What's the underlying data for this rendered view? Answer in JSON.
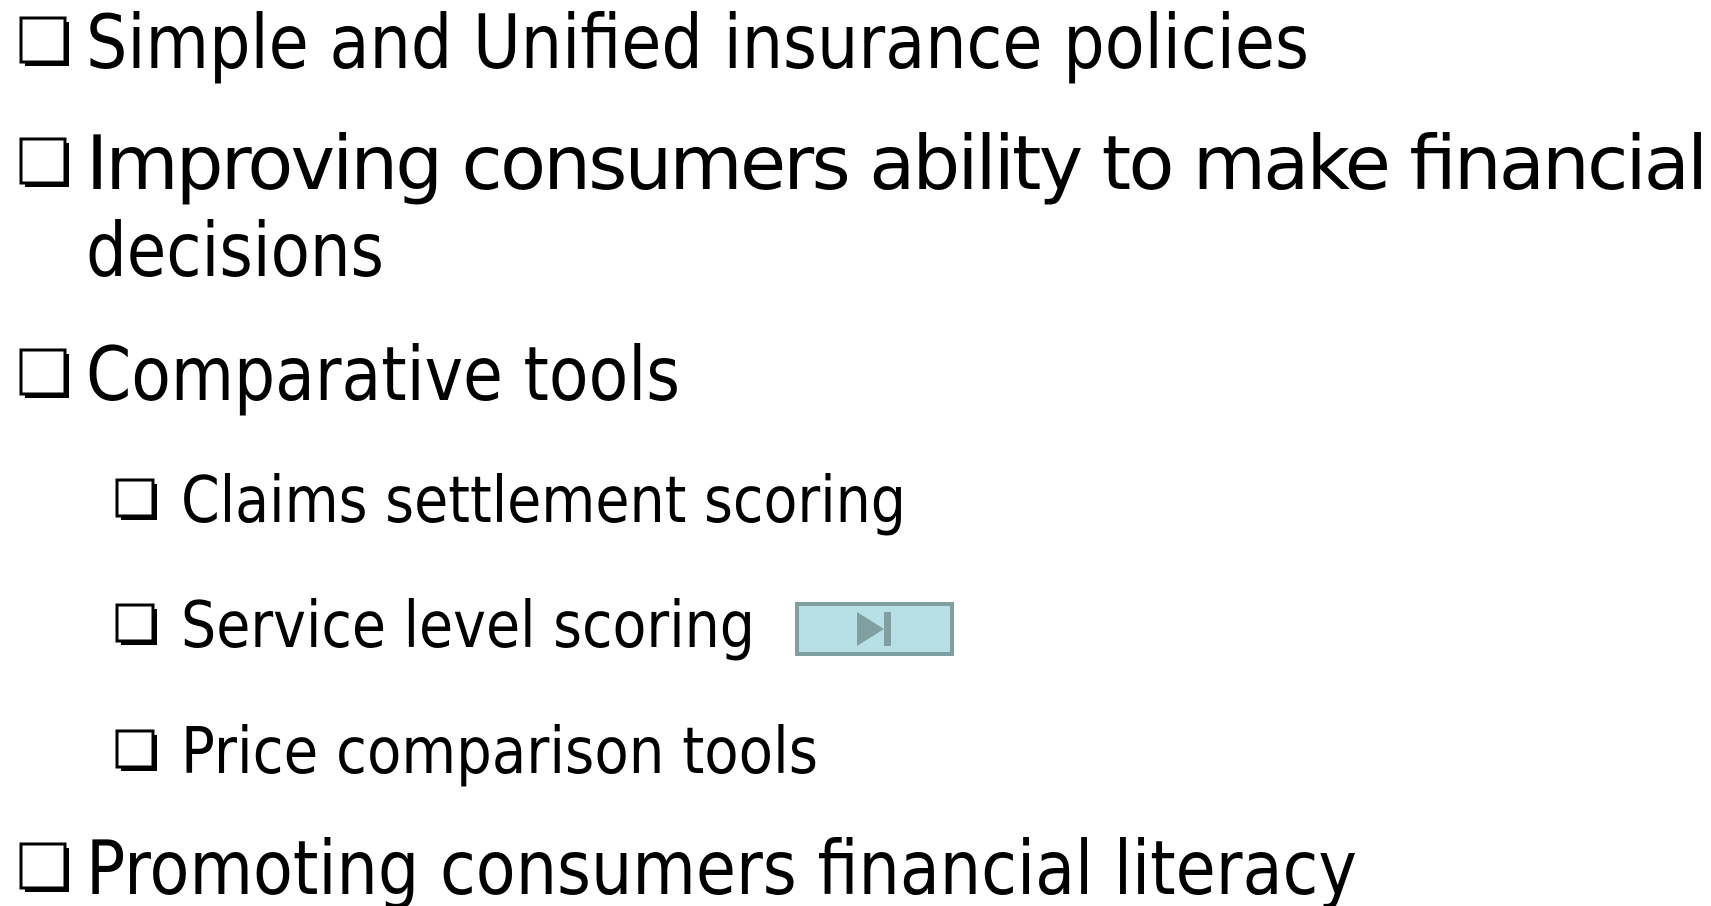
{
  "items": [
    {
      "level": 1,
      "lines": [
        "Simple and Unified insurance policies"
      ]
    },
    {
      "level": 1,
      "lines": [
        "Improving consumers ability to make financial",
        "decisions"
      ]
    },
    {
      "level": 1,
      "lines": [
        "Comparative tools"
      ]
    },
    {
      "level": 2,
      "lines": [
        "Claims settlement scoring"
      ]
    },
    {
      "level": 2,
      "lines": [
        "Service level scoring"
      ]
    },
    {
      "level": 2,
      "lines": [
        "Price comparison tools"
      ]
    },
    {
      "level": 1,
      "lines": [
        "Promoting consumers financial literacy"
      ]
    }
  ]
}
